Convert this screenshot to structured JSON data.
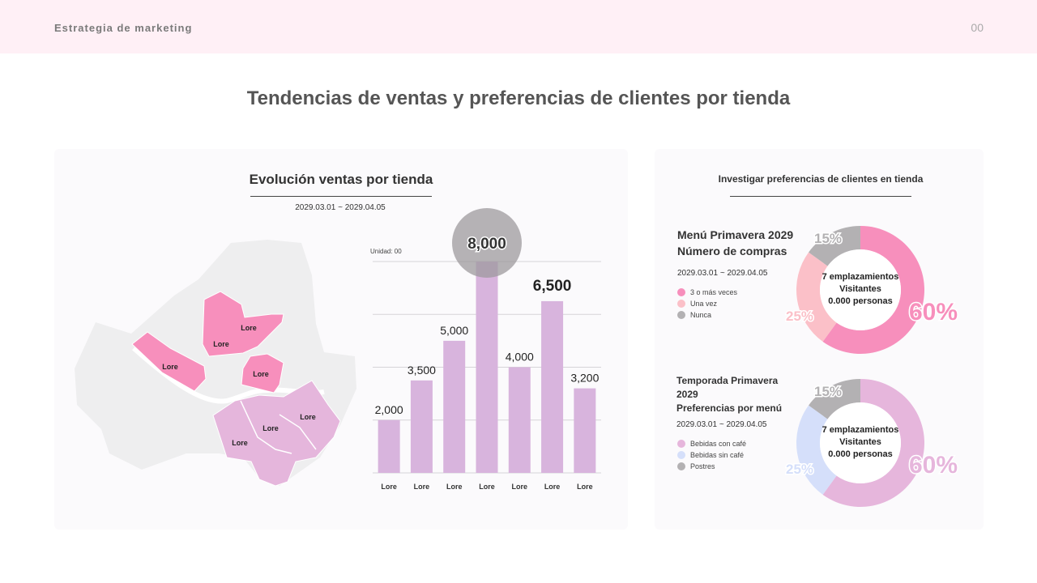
{
  "header": {
    "title": "Estrategia de marketing",
    "page": "00"
  },
  "page_title": "Tendencias de ventas y preferencias de clientes por tienda",
  "left_panel": {
    "title": "Evolución ventas por tienda",
    "date_range": "2029.03.01 ~ 2029.04.05",
    "map_labels": [
      "Lore",
      "Lore",
      "Lore",
      "Lore",
      "Lore",
      "Lore",
      "Lore"
    ],
    "colors": {
      "highlight": "#f78fbc",
      "secondary": "#e5b6dc",
      "base": "#eeeeef"
    }
  },
  "right_panel": {
    "title": "Investigar preferencias de clientes en tienda",
    "donut1": {
      "title_line1": "Menú Primavera 2029",
      "title_line2": "Número de compras",
      "date_range": "2029.03.01 ~ 2029.04.05",
      "center_line1": "7 emplazamientos",
      "center_line2": "Visitantes",
      "center_line3": "0.000 personas"
    },
    "donut2": {
      "title_line1": "Temporada Primavera",
      "title_line2": "2029",
      "title_line3": "Preferencias por menú",
      "date_range": "2029.03.01 ~ 2029.04.05",
      "center_line1": "7 emplazamientos",
      "center_line2": "Visitantes",
      "center_line3": "0.000 personas"
    }
  },
  "chart_data": [
    {
      "type": "bar",
      "unit_label": "Unidad: 00",
      "categories": [
        "Lore",
        "Lore",
        "Lore",
        "Lore",
        "Lore",
        "Lore",
        "Lore"
      ],
      "values": [
        2000,
        3500,
        5000,
        8000,
        4000,
        6500,
        3200
      ],
      "data_labels": [
        "2,000",
        "3,500",
        "5,000",
        "8,000",
        "4,000",
        "6,500",
        "3,200"
      ],
      "ylim": [
        0,
        8000
      ],
      "grid": true,
      "highlight_index": 3,
      "bar_color": "#d8b4dd"
    },
    {
      "type": "pie",
      "donut": true,
      "labels": [
        "3 o más veces",
        "Una vez",
        "Nunca"
      ],
      "values": [
        60,
        25,
        15
      ],
      "value_labels": [
        "60%",
        "25%",
        "15%"
      ],
      "colors": [
        "#f78fbc",
        "#fbc0c8",
        "#b3b1b3"
      ]
    },
    {
      "type": "pie",
      "donut": true,
      "labels": [
        "Bebidas con café",
        "Bebidas sin café",
        "Postres"
      ],
      "values": [
        60,
        25,
        15
      ],
      "value_labels": [
        "60%",
        "25%",
        "15%"
      ],
      "colors": [
        "#e6b6dc",
        "#d5dffa",
        "#b3b1b3"
      ]
    }
  ]
}
